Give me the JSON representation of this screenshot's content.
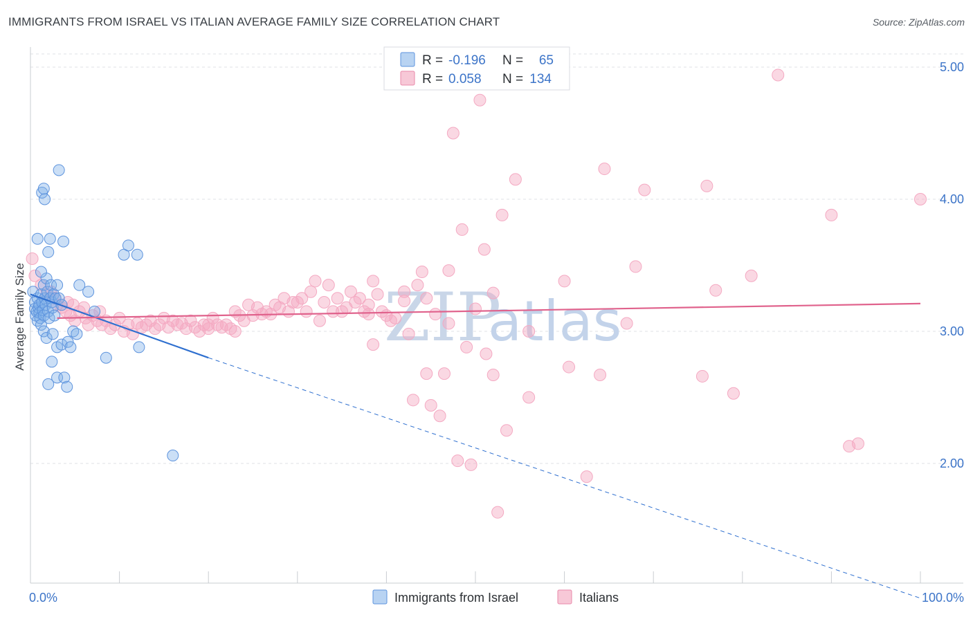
{
  "header": {
    "title": "IMMIGRANTS FROM ISRAEL VS ITALIAN AVERAGE FAMILY SIZE CORRELATION CHART",
    "source": "Source: ZipAtlas.com"
  },
  "watermark": {
    "zip": "ZIP",
    "atlas": "atlas"
  },
  "legend": {
    "rows": [
      {
        "r_label": "R =",
        "r_value": "-0.196",
        "n_label": "N =",
        "n_value": "65",
        "color": "#7eaee8"
      },
      {
        "r_label": "R =",
        "r_value": "0.058",
        "n_label": "N =",
        "n_value": "134",
        "color": "#f19ab7"
      }
    ]
  },
  "chart_data": {
    "type": "scatter",
    "title": "IMMIGRANTS FROM ISRAEL VS ITALIAN AVERAGE FAMILY SIZE CORRELATION CHART",
    "xlabel": "",
    "ylabel": "Average Family Size",
    "xlim": [
      0,
      100
    ],
    "ylim": [
      1.0,
      5.1
    ],
    "x_tick_labels": [
      "0.0%",
      "100.0%"
    ],
    "y_ticks": [
      2.0,
      3.0,
      4.0,
      5.0
    ],
    "y_tick_labels": [
      "2.00",
      "3.00",
      "4.00",
      "5.00"
    ],
    "grid": true,
    "legend_position": "top-center",
    "series": [
      {
        "name": "Immigrants from Israel",
        "color": "#7eaee8",
        "line_color": "#2e6fcf",
        "r": -0.196,
        "n": 65,
        "trend": {
          "x0": 0,
          "y0": 3.28,
          "x_solid_end": 20,
          "y_solid_end": 2.8,
          "x1": 100,
          "y1": 0.98
        },
        "points": [
          [
            0.3,
            3.3
          ],
          [
            0.5,
            3.22
          ],
          [
            0.5,
            3.17
          ],
          [
            0.6,
            3.12
          ],
          [
            0.7,
            3.15
          ],
          [
            0.8,
            3.25
          ],
          [
            0.8,
            3.08
          ],
          [
            0.9,
            3.18
          ],
          [
            1.0,
            3.2
          ],
          [
            1.0,
            3.14
          ],
          [
            1.1,
            3.1
          ],
          [
            1.2,
            3.28
          ],
          [
            1.2,
            3.05
          ],
          [
            1.3,
            3.22
          ],
          [
            1.4,
            3.16
          ],
          [
            1.5,
            3.12
          ],
          [
            1.5,
            3.35
          ],
          [
            1.6,
            3.25
          ],
          [
            1.7,
            3.2
          ],
          [
            1.8,
            3.4
          ],
          [
            1.9,
            3.3
          ],
          [
            2.0,
            3.15
          ],
          [
            2.1,
            3.1
          ],
          [
            2.2,
            3.25
          ],
          [
            2.3,
            3.35
          ],
          [
            2.4,
            3.22
          ],
          [
            2.5,
            3.18
          ],
          [
            2.6,
            3.28
          ],
          [
            2.7,
            3.12
          ],
          [
            2.8,
            3.25
          ],
          [
            3.0,
            3.35
          ],
          [
            3.2,
            3.25
          ],
          [
            3.5,
            3.2
          ],
          [
            0.8,
            3.7
          ],
          [
            1.2,
            3.45
          ],
          [
            2.2,
            3.7
          ],
          [
            2.0,
            3.6
          ],
          [
            3.7,
            3.68
          ],
          [
            1.3,
            4.05
          ],
          [
            1.5,
            4.08
          ],
          [
            1.6,
            4.0
          ],
          [
            3.2,
            4.22
          ],
          [
            1.5,
            3.0
          ],
          [
            1.8,
            2.95
          ],
          [
            2.5,
            2.98
          ],
          [
            3.0,
            2.88
          ],
          [
            3.5,
            2.9
          ],
          [
            4.2,
            2.92
          ],
          [
            4.5,
            2.88
          ],
          [
            4.8,
            3.0
          ],
          [
            5.2,
            2.98
          ],
          [
            2.0,
            2.6
          ],
          [
            2.4,
            2.77
          ],
          [
            3.0,
            2.65
          ],
          [
            3.8,
            2.65
          ],
          [
            4.1,
            2.58
          ],
          [
            5.5,
            3.35
          ],
          [
            6.5,
            3.3
          ],
          [
            7.2,
            3.15
          ],
          [
            8.5,
            2.8
          ],
          [
            10.5,
            3.58
          ],
          [
            11.0,
            3.65
          ],
          [
            12.0,
            3.58
          ],
          [
            12.2,
            2.88
          ],
          [
            16.0,
            2.06
          ]
        ]
      },
      {
        "name": "Italians",
        "color": "#f4a9c2",
        "line_color": "#e0628c",
        "r": 0.058,
        "n": 134,
        "trend": {
          "x0": 3,
          "y0": 3.1,
          "x1": 100,
          "y1": 3.21
        },
        "points": [
          [
            0.2,
            3.55
          ],
          [
            0.5,
            3.42
          ],
          [
            1.2,
            3.35
          ],
          [
            1.8,
            3.28
          ],
          [
            2.3,
            3.3
          ],
          [
            2.8,
            3.25
          ],
          [
            3.0,
            3.2
          ],
          [
            3.5,
            3.18
          ],
          [
            4.0,
            3.15
          ],
          [
            4.2,
            3.22
          ],
          [
            4.5,
            3.12
          ],
          [
            4.8,
            3.2
          ],
          [
            5.0,
            3.08
          ],
          [
            5.5,
            3.15
          ],
          [
            6.0,
            3.18
          ],
          [
            6.2,
            3.1
          ],
          [
            6.5,
            3.05
          ],
          [
            7.0,
            3.12
          ],
          [
            7.5,
            3.08
          ],
          [
            7.8,
            3.15
          ],
          [
            8.0,
            3.05
          ],
          [
            8.5,
            3.08
          ],
          [
            9.0,
            3.02
          ],
          [
            9.5,
            3.05
          ],
          [
            10.0,
            3.1
          ],
          [
            10.5,
            3.0
          ],
          [
            11.0,
            3.05
          ],
          [
            11.5,
            2.98
          ],
          [
            12.0,
            3.06
          ],
          [
            12.5,
            3.03
          ],
          [
            13.0,
            3.05
          ],
          [
            13.5,
            3.08
          ],
          [
            14.0,
            3.02
          ],
          [
            14.5,
            3.05
          ],
          [
            15.0,
            3.1
          ],
          [
            15.5,
            3.03
          ],
          [
            16.0,
            3.08
          ],
          [
            16.5,
            3.05
          ],
          [
            17.0,
            3.06
          ],
          [
            17.5,
            3.02
          ],
          [
            18.0,
            3.08
          ],
          [
            18.5,
            3.03
          ],
          [
            19.0,
            3.0
          ],
          [
            19.5,
            3.05
          ],
          [
            20.0,
            3.02
          ],
          [
            20.5,
            3.1
          ],
          [
            21.0,
            3.05
          ],
          [
            21.5,
            3.03
          ],
          [
            22.0,
            3.05
          ],
          [
            22.5,
            3.02
          ],
          [
            23.0,
            3.15
          ],
          [
            23.5,
            3.12
          ],
          [
            24.0,
            3.08
          ],
          [
            24.5,
            3.2
          ],
          [
            25.0,
            3.12
          ],
          [
            25.5,
            3.18
          ],
          [
            26.0,
            3.13
          ],
          [
            26.5,
            3.15
          ],
          [
            27.0,
            3.13
          ],
          [
            27.5,
            3.2
          ],
          [
            28.0,
            3.18
          ],
          [
            28.5,
            3.25
          ],
          [
            29.0,
            3.15
          ],
          [
            29.5,
            3.22
          ],
          [
            30.0,
            3.22
          ],
          [
            30.5,
            3.25
          ],
          [
            31.0,
            3.15
          ],
          [
            31.5,
            3.3
          ],
          [
            32.0,
            3.38
          ],
          [
            32.5,
            3.08
          ],
          [
            33.0,
            3.22
          ],
          [
            33.5,
            3.35
          ],
          [
            34.0,
            3.15
          ],
          [
            34.5,
            3.25
          ],
          [
            35.0,
            3.15
          ],
          [
            35.5,
            3.18
          ],
          [
            36.0,
            3.3
          ],
          [
            36.5,
            3.22
          ],
          [
            37.0,
            3.25
          ],
          [
            37.5,
            3.15
          ],
          [
            38.0,
            3.2
          ],
          [
            38.5,
            3.38
          ],
          [
            39.0,
            3.28
          ],
          [
            39.5,
            3.15
          ],
          [
            40.0,
            3.12
          ],
          [
            40.5,
            3.08
          ],
          [
            41.0,
            3.1
          ],
          [
            42.0,
            3.23
          ],
          [
            42.5,
            2.98
          ],
          [
            43.5,
            3.35
          ],
          [
            44.0,
            3.45
          ],
          [
            44.5,
            3.25
          ],
          [
            45.5,
            3.13
          ],
          [
            23.0,
            3.0
          ],
          [
            20.0,
            3.05
          ],
          [
            38.5,
            2.9
          ],
          [
            43.0,
            2.48
          ],
          [
            44.5,
            2.68
          ],
          [
            45.0,
            2.44
          ],
          [
            46.0,
            2.36
          ],
          [
            46.5,
            2.68
          ],
          [
            47.0,
            3.46
          ],
          [
            47.0,
            3.06
          ],
          [
            47.5,
            4.5
          ],
          [
            48.0,
            2.02
          ],
          [
            48.5,
            3.77
          ],
          [
            49.0,
            2.88
          ],
          [
            49.5,
            1.99
          ],
          [
            50.0,
            3.17
          ],
          [
            50.5,
            4.75
          ],
          [
            51.0,
            3.62
          ],
          [
            51.2,
            2.83
          ],
          [
            52.0,
            2.67
          ],
          [
            52.5,
            1.63
          ],
          [
            52.0,
            3.29
          ],
          [
            53.0,
            3.88
          ],
          [
            53.5,
            2.25
          ],
          [
            54.5,
            4.15
          ],
          [
            56.0,
            2.5
          ],
          [
            60.0,
            3.38
          ],
          [
            60.5,
            2.73
          ],
          [
            62.5,
            1.9
          ],
          [
            64.0,
            2.67
          ],
          [
            64.5,
            4.23
          ],
          [
            67.0,
            3.06
          ],
          [
            68.0,
            3.49
          ],
          [
            69.0,
            4.07
          ],
          [
            75.5,
            2.66
          ],
          [
            76.0,
            4.1
          ],
          [
            77.0,
            3.31
          ],
          [
            79.0,
            2.53
          ],
          [
            81.0,
            3.42
          ],
          [
            84.0,
            4.94
          ],
          [
            90.0,
            3.88
          ],
          [
            92.0,
            2.13
          ],
          [
            93.0,
            2.15
          ],
          [
            100.0,
            4.0
          ],
          [
            56.0,
            3.0
          ],
          [
            38.0,
            3.13
          ],
          [
            42.0,
            3.3
          ]
        ]
      }
    ]
  },
  "bottom_legend": {
    "items": [
      {
        "label": "Immigrants from Israel",
        "color": "#7eaee8"
      },
      {
        "label": "Italians",
        "color": "#f4a9c2"
      }
    ]
  }
}
